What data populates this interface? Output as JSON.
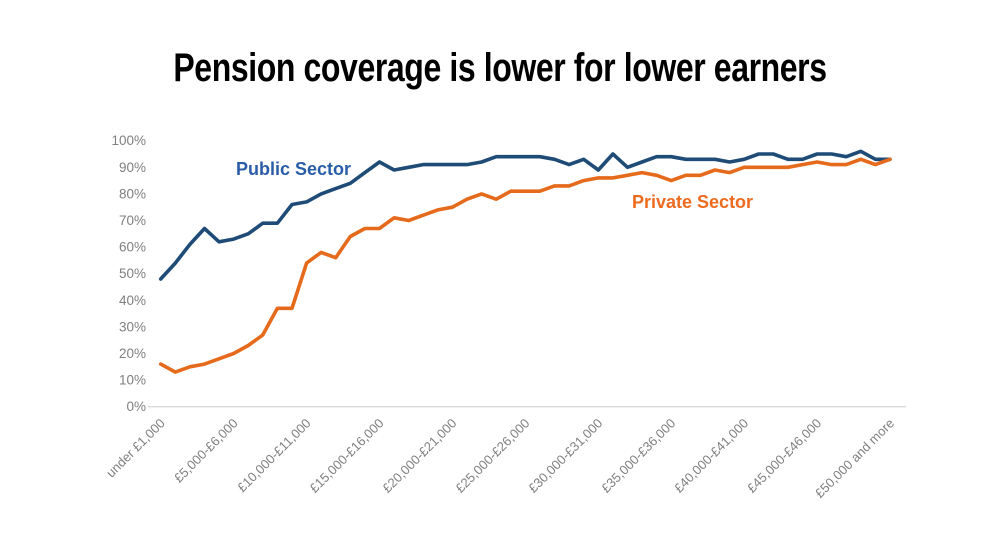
{
  "title": "Pension coverage is lower for lower earners",
  "colors": {
    "background": "#FFFFFF",
    "title_text": "#000000",
    "axis_text": "#7F7F7F",
    "baseline": "#D9D9D9",
    "public_sector": "#1E4C77",
    "public_sector_label": "#2A5DA8",
    "private_sector": "#E56A1B",
    "private_sector_label": "#ED6B1E"
  },
  "chart_data": {
    "type": "line",
    "title": "Pension coverage is lower for lower earners",
    "xlabel": "",
    "ylabel": "",
    "ylim": [
      0,
      100
    ],
    "grid": "baseline-only",
    "legend": "inline-series-labels",
    "y_ticks": [
      0,
      10,
      20,
      30,
      40,
      50,
      60,
      70,
      80,
      90,
      100
    ],
    "y_tick_labels": [
      "0%",
      "10%",
      "20%",
      "30%",
      "40%",
      "50%",
      "60%",
      "70%",
      "80%",
      "90%",
      "100%"
    ],
    "x_tick_indices": [
      0,
      5,
      10,
      15,
      20,
      25,
      30,
      35,
      40,
      45,
      50
    ],
    "x_tick_labels": [
      "under £1,000",
      "£5,000-£6,000",
      "£10,000-£11,000",
      "£15,000-£16,000",
      "£20,000-£21,000",
      "£25,000-£26,000",
      "£30,000-£31,000",
      "£35,000-£36,000",
      "£40,000-£41,000",
      "£45,000-£46,000",
      "£50,000 and more"
    ],
    "num_points": 51,
    "series": [
      {
        "name": "Public Sector",
        "color": "#1E4C77",
        "label_color": "#2A5DA8",
        "values": [
          48,
          54,
          61,
          67,
          62,
          63,
          65,
          69,
          69,
          76,
          77,
          80,
          82,
          84,
          88,
          92,
          89,
          90,
          91,
          91,
          91,
          91,
          92,
          94,
          94,
          94,
          94,
          93,
          91,
          93,
          89,
          95,
          90,
          92,
          94,
          94,
          93,
          93,
          93,
          92,
          93,
          95,
          95,
          93,
          93,
          95,
          95,
          94,
          96,
          93,
          93
        ]
      },
      {
        "name": "Private Sector",
        "color": "#E56A1B",
        "label_color": "#ED6B1E",
        "values": [
          16,
          13,
          15,
          16,
          18,
          20,
          23,
          27,
          37,
          37,
          54,
          58,
          56,
          64,
          67,
          67,
          71,
          70,
          72,
          74,
          75,
          78,
          80,
          78,
          81,
          81,
          81,
          83,
          83,
          85,
          86,
          86,
          87,
          88,
          87,
          85,
          87,
          87,
          89,
          88,
          90,
          90,
          90,
          90,
          91,
          92,
          91,
          91,
          93,
          91,
          93
        ]
      }
    ]
  }
}
